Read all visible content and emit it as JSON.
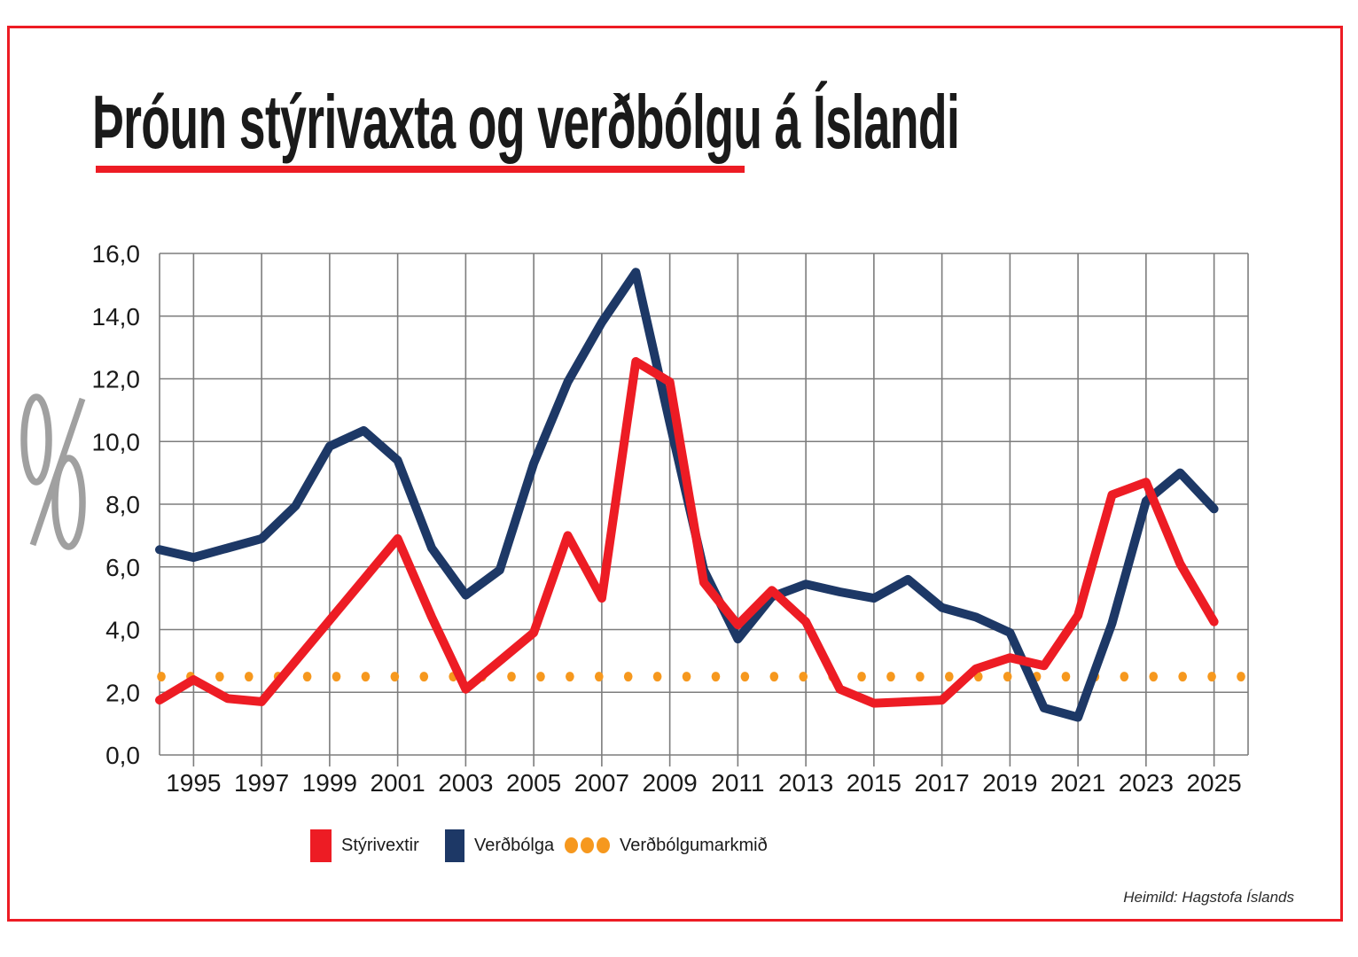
{
  "title": "Þróun stýrivaxta og verðbólgu á Íslandi",
  "y_axis_unit": "%",
  "source": "Heimild: Hagstofa Íslands",
  "colors": {
    "red": "#ed1c24",
    "navy": "#1d3866",
    "orange": "#f6981e",
    "grid": "#7d7d7d",
    "percent_symbol": "#a0a0a0",
    "text": "#1a1a1a"
  },
  "legend": [
    {
      "label": "Stýrivextir",
      "color": "#ed1c24",
      "marker": "square"
    },
    {
      "label": "Verðbólga",
      "color": "#1d3866",
      "marker": "square"
    },
    {
      "label": "Verðbólgumarkmið",
      "color": "#f6981e",
      "marker": "dots"
    }
  ],
  "chart_data": {
    "type": "line",
    "title": "Þróun stýrivaxta og verðbólgu á Íslandi",
    "xlabel": "",
    "ylabel": "%",
    "xlim": [
      1994,
      2026
    ],
    "ylim": [
      0,
      16
    ],
    "grid": true,
    "legend_position": "bottom",
    "x_ticks": [
      "1995",
      "1997",
      "1999",
      "2001",
      "2003",
      "2005",
      "2007",
      "2009",
      "2011",
      "2013",
      "2015",
      "2017",
      "2019",
      "2021",
      "2023",
      "2025"
    ],
    "y_ticks": [
      "16,0",
      "14,0",
      "12,0",
      "10,0",
      "8,0",
      "6,0",
      "4,0",
      "2,0",
      "0,0"
    ],
    "x": [
      1994,
      1995,
      1996,
      1997,
      1998,
      1999,
      2000,
      2001,
      2002,
      2003,
      2004,
      2005,
      2006,
      2007,
      2008,
      2009,
      2010,
      2011,
      2012,
      2013,
      2014,
      2015,
      2016,
      2017,
      2018,
      2019,
      2020,
      2021,
      2022,
      2023,
      2024,
      2025
    ],
    "series": [
      {
        "name": "Stýrivextir",
        "color": "#ed1c24",
        "style": "solid",
        "values": [
          1.75,
          2.4,
          1.8,
          1.7,
          3.0,
          4.3,
          5.6,
          6.9,
          4.4,
          2.1,
          3.0,
          3.9,
          7.0,
          5.0,
          12.55,
          11.9,
          5.5,
          4.15,
          5.25,
          4.25,
          2.1,
          1.65,
          1.7,
          1.75,
          2.75,
          3.1,
          2.85,
          4.45,
          8.3,
          8.7,
          6.1,
          4.25
        ]
      },
      {
        "name": "Verðbólga",
        "color": "#1d3866",
        "style": "solid",
        "values": [
          6.55,
          6.3,
          6.6,
          6.9,
          7.95,
          9.85,
          10.35,
          9.4,
          6.6,
          5.1,
          5.9,
          9.3,
          11.9,
          13.8,
          15.4,
          10.6,
          5.9,
          3.7,
          5.05,
          5.45,
          5.2,
          5.0,
          5.6,
          4.7,
          4.4,
          3.9,
          1.5,
          1.2,
          4.2,
          8.1,
          9.0,
          7.85
        ]
      },
      {
        "name": "Verðbólgumarkmið",
        "color": "#f6981e",
        "style": "dotted",
        "constant": 2.5,
        "values": [
          2.5,
          2.5,
          2.5,
          2.5,
          2.5,
          2.5,
          2.5,
          2.5,
          2.5,
          2.5,
          2.5,
          2.5,
          2.5,
          2.5,
          2.5,
          2.5,
          2.5,
          2.5,
          2.5,
          2.5,
          2.5,
          2.5,
          2.5,
          2.5,
          2.5,
          2.5,
          2.5,
          2.5,
          2.5,
          2.5,
          2.5,
          2.5
        ]
      }
    ]
  }
}
